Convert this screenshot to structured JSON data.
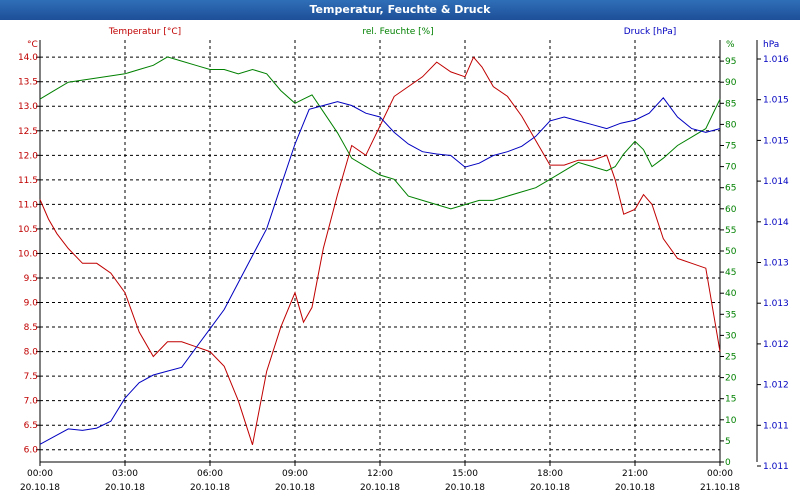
{
  "window": {
    "title": "Temperatur, Feuchte & Druck"
  },
  "chart_data": {
    "type": "line",
    "title": "Temperatur, Feuchte & Druck",
    "grid": true,
    "colors": {
      "temperature": "#c00000",
      "humidity": "#008000",
      "pressure": "#0000c0",
      "grid": "#000000",
      "frame": "#000000"
    },
    "x_ticks": [
      {
        "time": "00:00",
        "date": "20.10.18"
      },
      {
        "time": "03:00",
        "date": "20.10.18"
      },
      {
        "time": "06:00",
        "date": "20.10.18"
      },
      {
        "time": "09:00",
        "date": "20.10.18"
      },
      {
        "time": "12:00",
        "date": "20.10.18"
      },
      {
        "time": "15:00",
        "date": "20.10.18"
      },
      {
        "time": "18:00",
        "date": "20.10.18"
      },
      {
        "time": "21:00",
        "date": "20.10.18"
      },
      {
        "time": "00:00",
        "date": "21.10.18"
      }
    ],
    "x_range_hours": [
      0,
      24
    ],
    "axes": {
      "temperature": {
        "label": "Temperatur [°C]",
        "unit": "°C",
        "range": [
          5.75,
          14.35
        ],
        "ticks": [
          "6.0",
          "6.5",
          "7.0",
          "7.5",
          "8.0",
          "8.5",
          "9.0",
          "9.5",
          "10.0",
          "10.5",
          "11.0",
          "11.5",
          "12.0",
          "12.5",
          "13.0",
          "13.5",
          "14.0"
        ]
      },
      "humidity": {
        "label": "rel. Feuchte [%]",
        "unit": "%",
        "range": [
          0,
          100
        ],
        "ticks": [
          "0",
          "5",
          "10",
          "15",
          "20",
          "25",
          "30",
          "35",
          "40",
          "45",
          "50",
          "55",
          "60",
          "65",
          "70",
          "75",
          "80",
          "85",
          "90",
          "95"
        ]
      },
      "pressure": {
        "label": "Druck [hPa]",
        "unit": "hPa",
        "range": [
          1010.72,
          1016.2
        ],
        "ticks": [
          "1.011",
          "1.011",
          "1.012",
          "1.012",
          "1.013",
          "1.013",
          "1.014",
          "1.014",
          "1.015",
          "1.015",
          "1.016"
        ]
      }
    },
    "series": [
      {
        "name": "Temperatur [°C]",
        "axis": "temperature",
        "x": [
          0,
          0.3,
          0.6,
          1,
          1.5,
          2,
          2.5,
          3,
          3.5,
          4,
          4.5,
          5,
          5.5,
          6,
          6.5,
          7,
          7.5,
          8,
          8.5,
          9,
          9.3,
          9.6,
          10,
          10.5,
          11,
          11.5,
          12,
          12.5,
          13,
          13.5,
          14,
          14.5,
          15,
          15.3,
          15.6,
          16,
          16.5,
          17,
          17.5,
          18,
          18.5,
          19,
          19.5,
          20,
          20.3,
          20.6,
          21,
          21.3,
          21.6,
          22,
          22.5,
          23,
          23.5,
          24
        ],
        "values": [
          11.1,
          10.7,
          10.4,
          10.1,
          9.8,
          9.8,
          9.6,
          9.2,
          8.4,
          7.9,
          8.2,
          8.2,
          8.1,
          8.0,
          7.7,
          7.0,
          6.1,
          7.6,
          8.5,
          9.2,
          8.6,
          8.9,
          10.1,
          11.2,
          12.2,
          12.0,
          12.6,
          13.2,
          13.4,
          13.6,
          13.9,
          13.7,
          13.6,
          14.0,
          13.8,
          13.4,
          13.2,
          12.8,
          12.3,
          11.8,
          11.8,
          11.9,
          11.9,
          12.0,
          11.5,
          10.8,
          10.9,
          11.2,
          11.0,
          10.3,
          9.9,
          9.8,
          9.7,
          8.0
        ]
      },
      {
        "name": "rel. Feuchte [%]",
        "axis": "humidity",
        "x": [
          0,
          0.5,
          1,
          2,
          3,
          3.5,
          4,
          4.5,
          5,
          5.5,
          6,
          6.5,
          7,
          7.5,
          8,
          8.5,
          9,
          9.3,
          9.6,
          10,
          10.5,
          11,
          11.5,
          12,
          12.5,
          13,
          13.5,
          14,
          14.5,
          15,
          15.5,
          16,
          16.5,
          17,
          17.5,
          18,
          18.5,
          19,
          19.5,
          20,
          20.3,
          20.6,
          21,
          21.3,
          21.6,
          22,
          22.5,
          23,
          23.5,
          24
        ],
        "values": [
          86,
          88,
          90,
          91,
          92,
          93,
          94,
          96,
          95,
          94,
          93,
          93,
          92,
          93,
          92,
          88,
          85,
          86,
          87,
          83,
          78,
          72,
          70,
          68,
          67,
          63,
          62,
          61,
          60,
          61,
          62,
          62,
          63,
          64,
          65,
          67,
          69,
          71,
          70,
          69,
          70,
          73,
          76,
          74,
          70,
          72,
          75,
          77,
          79,
          86
        ]
      },
      {
        "name": "Druck [hPa]",
        "axis": "pressure",
        "x": [
          0,
          0.5,
          1,
          1.5,
          2,
          2.5,
          3,
          3.5,
          4,
          4.5,
          5,
          5.5,
          6,
          6.5,
          7,
          7.5,
          8,
          8.5,
          9,
          9.5,
          10,
          10.5,
          11,
          11.5,
          12,
          12.5,
          13,
          13.5,
          14,
          14.5,
          15,
          15.5,
          16,
          16.5,
          17,
          17.5,
          18,
          18.5,
          19,
          19.5,
          20,
          20.5,
          21,
          21.5,
          22,
          22.5,
          23,
          23.5,
          24
        ],
        "values": [
          1010.95,
          1011.05,
          1011.15,
          1011.13,
          1011.16,
          1011.25,
          1011.55,
          1011.75,
          1011.85,
          1011.9,
          1011.95,
          1012.2,
          1012.45,
          1012.7,
          1013.05,
          1013.4,
          1013.75,
          1014.3,
          1014.85,
          1015.3,
          1015.35,
          1015.4,
          1015.35,
          1015.25,
          1015.2,
          1015.0,
          1014.85,
          1014.75,
          1014.72,
          1014.7,
          1014.55,
          1014.6,
          1014.7,
          1014.75,
          1014.82,
          1014.95,
          1015.15,
          1015.2,
          1015.15,
          1015.1,
          1015.05,
          1015.12,
          1015.16,
          1015.25,
          1015.45,
          1015.2,
          1015.05,
          1015.0,
          1015.05
        ]
      }
    ]
  }
}
